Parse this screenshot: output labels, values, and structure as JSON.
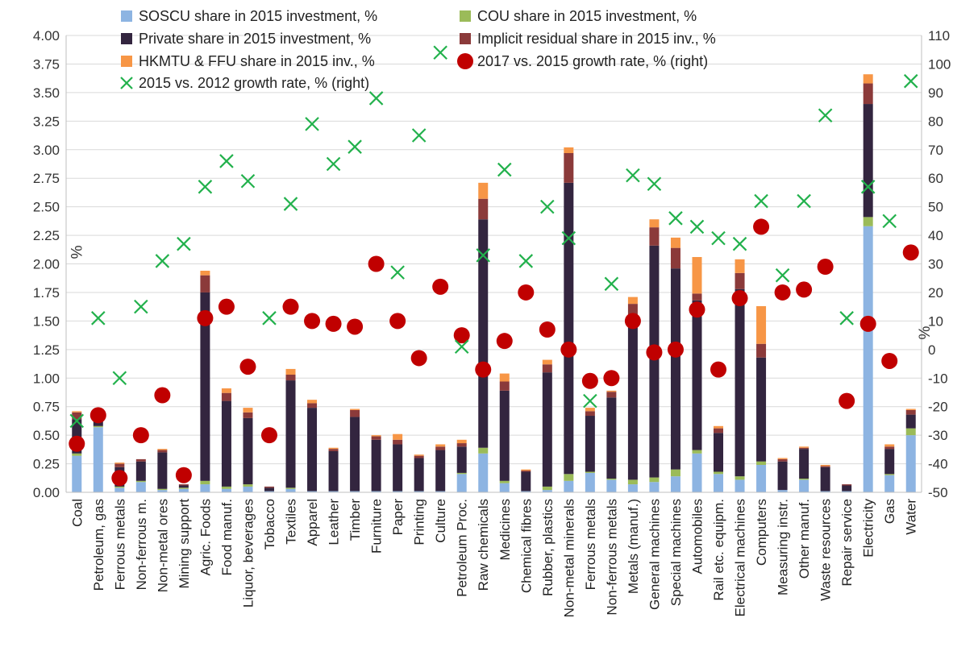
{
  "chart_data": {
    "type": "bar",
    "stacked": true,
    "categories": [
      "Coal",
      "Petroleum, gas",
      "Ferrous metals",
      "Non-ferrous m.",
      "Non-metal ores",
      "Mining support",
      "Agric. Foods",
      "Food manuf.",
      "Liquor, beverages",
      "Tobacco",
      "Textiles",
      "Apparel",
      "Leather",
      "Timber",
      "Furniture",
      "Paper",
      "Printing",
      "Culture",
      "Petroleum Proc.",
      "Raw chemicals",
      "Medicines",
      "Chemical fibres",
      "Rubber, plastics",
      "Non-metal minerals",
      "Ferrous metals",
      "Non-ferrous metals",
      "Metals (manuf.)",
      "General machines",
      "Special machines",
      "Automobiles",
      "Rail etc. equipm.",
      "Electrical machines",
      "Computers",
      "Measuring instr.",
      "Other manuf.",
      "Waste resources",
      "Repair service",
      "Electricity",
      "Gas",
      "Water"
    ],
    "y_left": {
      "label": "%",
      "min": 0,
      "max": 4,
      "ticks": [
        "0.00",
        "0.25",
        "0.50",
        "0.75",
        "1.00",
        "1.25",
        "1.50",
        "1.75",
        "2.00",
        "2.25",
        "2.50",
        "2.75",
        "3.00",
        "3.25",
        "3.50",
        "3.75",
        "4.00"
      ]
    },
    "y_right": {
      "label": "%",
      "min": -50,
      "max": 110,
      "ticks": [
        "-50",
        "-40",
        "-30",
        "-20",
        "-10",
        "0",
        "10",
        "20",
        "30",
        "40",
        "50",
        "60",
        "70",
        "80",
        "90",
        "100",
        "110"
      ]
    },
    "grid": true,
    "legend_position": "top",
    "series": [
      {
        "name": "SOSCU share in 2015 investment, %",
        "kind": "bar",
        "axis": "left",
        "color": "#8db4e2",
        "values": [
          0.32,
          0.57,
          0.04,
          0.09,
          0.02,
          0.03,
          0.07,
          0.03,
          0.05,
          0.01,
          0.03,
          0.01,
          0.01,
          0.01,
          0.01,
          0.01,
          0.01,
          0.01,
          0.16,
          0.34,
          0.08,
          0.01,
          0.02,
          0.1,
          0.17,
          0.11,
          0.07,
          0.09,
          0.14,
          0.34,
          0.16,
          0.11,
          0.24,
          0.02,
          0.11,
          0.01,
          0.01,
          2.33,
          0.15,
          0.5
        ]
      },
      {
        "name": "COU share in 2015 investment, %",
        "kind": "bar",
        "axis": "left",
        "color": "#9bbb59",
        "values": [
          0.02,
          0.01,
          0.01,
          0.01,
          0.01,
          0.01,
          0.03,
          0.02,
          0.02,
          0.0,
          0.01,
          0.0,
          0.0,
          0.0,
          0.0,
          0.0,
          0.0,
          0.0,
          0.01,
          0.05,
          0.02,
          0.0,
          0.03,
          0.06,
          0.01,
          0.01,
          0.04,
          0.04,
          0.06,
          0.03,
          0.02,
          0.03,
          0.03,
          0.0,
          0.01,
          0.0,
          0.0,
          0.08,
          0.01,
          0.06
        ]
      },
      {
        "name": "Private share in 2015 investment, %",
        "kind": "bar",
        "axis": "left",
        "color": "#33253f",
        "values": [
          0.3,
          0.05,
          0.17,
          0.17,
          0.32,
          0.02,
          1.65,
          0.75,
          0.58,
          0.03,
          0.94,
          0.73,
          0.35,
          0.65,
          0.45,
          0.41,
          0.29,
          0.36,
          0.23,
          2.0,
          0.79,
          0.17,
          1.0,
          2.55,
          0.49,
          0.71,
          1.35,
          2.03,
          1.76,
          1.31,
          0.34,
          1.64,
          0.91,
          0.25,
          0.26,
          0.21,
          0.05,
          0.99,
          0.22,
          0.12
        ]
      },
      {
        "name": "Implicit residual share in 2015 inv., %",
        "kind": "bar",
        "axis": "left",
        "color": "#8b3a3a",
        "values": [
          0.06,
          0.06,
          0.03,
          0.02,
          0.02,
          0.01,
          0.15,
          0.07,
          0.05,
          0.01,
          0.05,
          0.04,
          0.02,
          0.06,
          0.03,
          0.04,
          0.02,
          0.03,
          0.03,
          0.18,
          0.08,
          0.01,
          0.07,
          0.26,
          0.04,
          0.05,
          0.19,
          0.16,
          0.18,
          0.06,
          0.04,
          0.14,
          0.12,
          0.02,
          0.01,
          0.01,
          0.01,
          0.18,
          0.02,
          0.04
        ]
      },
      {
        "name": "HKMTU & FFU share in 2015 inv., %",
        "kind": "bar",
        "axis": "left",
        "color": "#f79646",
        "values": [
          0.01,
          0.0,
          0.01,
          0.0,
          0.01,
          0.0,
          0.04,
          0.04,
          0.04,
          0.0,
          0.05,
          0.03,
          0.01,
          0.01,
          0.01,
          0.05,
          0.01,
          0.02,
          0.03,
          0.14,
          0.07,
          0.01,
          0.04,
          0.05,
          0.03,
          0.01,
          0.06,
          0.07,
          0.09,
          0.32,
          0.02,
          0.12,
          0.33,
          0.01,
          0.01,
          0.01,
          0.0,
          0.08,
          0.02,
          0.01
        ]
      },
      {
        "name": "2017 vs. 2015 growth rate, % (right)",
        "kind": "scatter",
        "marker": "circle",
        "axis": "right",
        "color": "#c00000",
        "values": [
          -33,
          -23,
          -45,
          -30,
          -16,
          -44,
          11,
          15,
          -6,
          -30,
          15,
          10,
          9,
          8,
          30,
          10,
          -3,
          22,
          5,
          -7,
          3,
          20,
          7,
          0,
          -11,
          -10,
          10,
          -1,
          0,
          14,
          -7,
          18,
          43,
          20,
          21,
          29,
          -18,
          9,
          -4,
          34
        ]
      },
      {
        "name": "2015 vs. 2012 growth rate, % (right)",
        "kind": "scatter",
        "marker": "x",
        "axis": "right",
        "color": "#22b14c",
        "values": [
          -25,
          11,
          -10,
          15,
          31,
          37,
          57,
          66,
          59,
          11,
          51,
          79,
          65,
          71,
          88,
          27,
          75,
          104,
          1,
          33,
          63,
          31,
          50,
          39,
          -18,
          23,
          61,
          58,
          46,
          43,
          39,
          37,
          52,
          26,
          52,
          82,
          11,
          57,
          45,
          94
        ]
      }
    ]
  }
}
